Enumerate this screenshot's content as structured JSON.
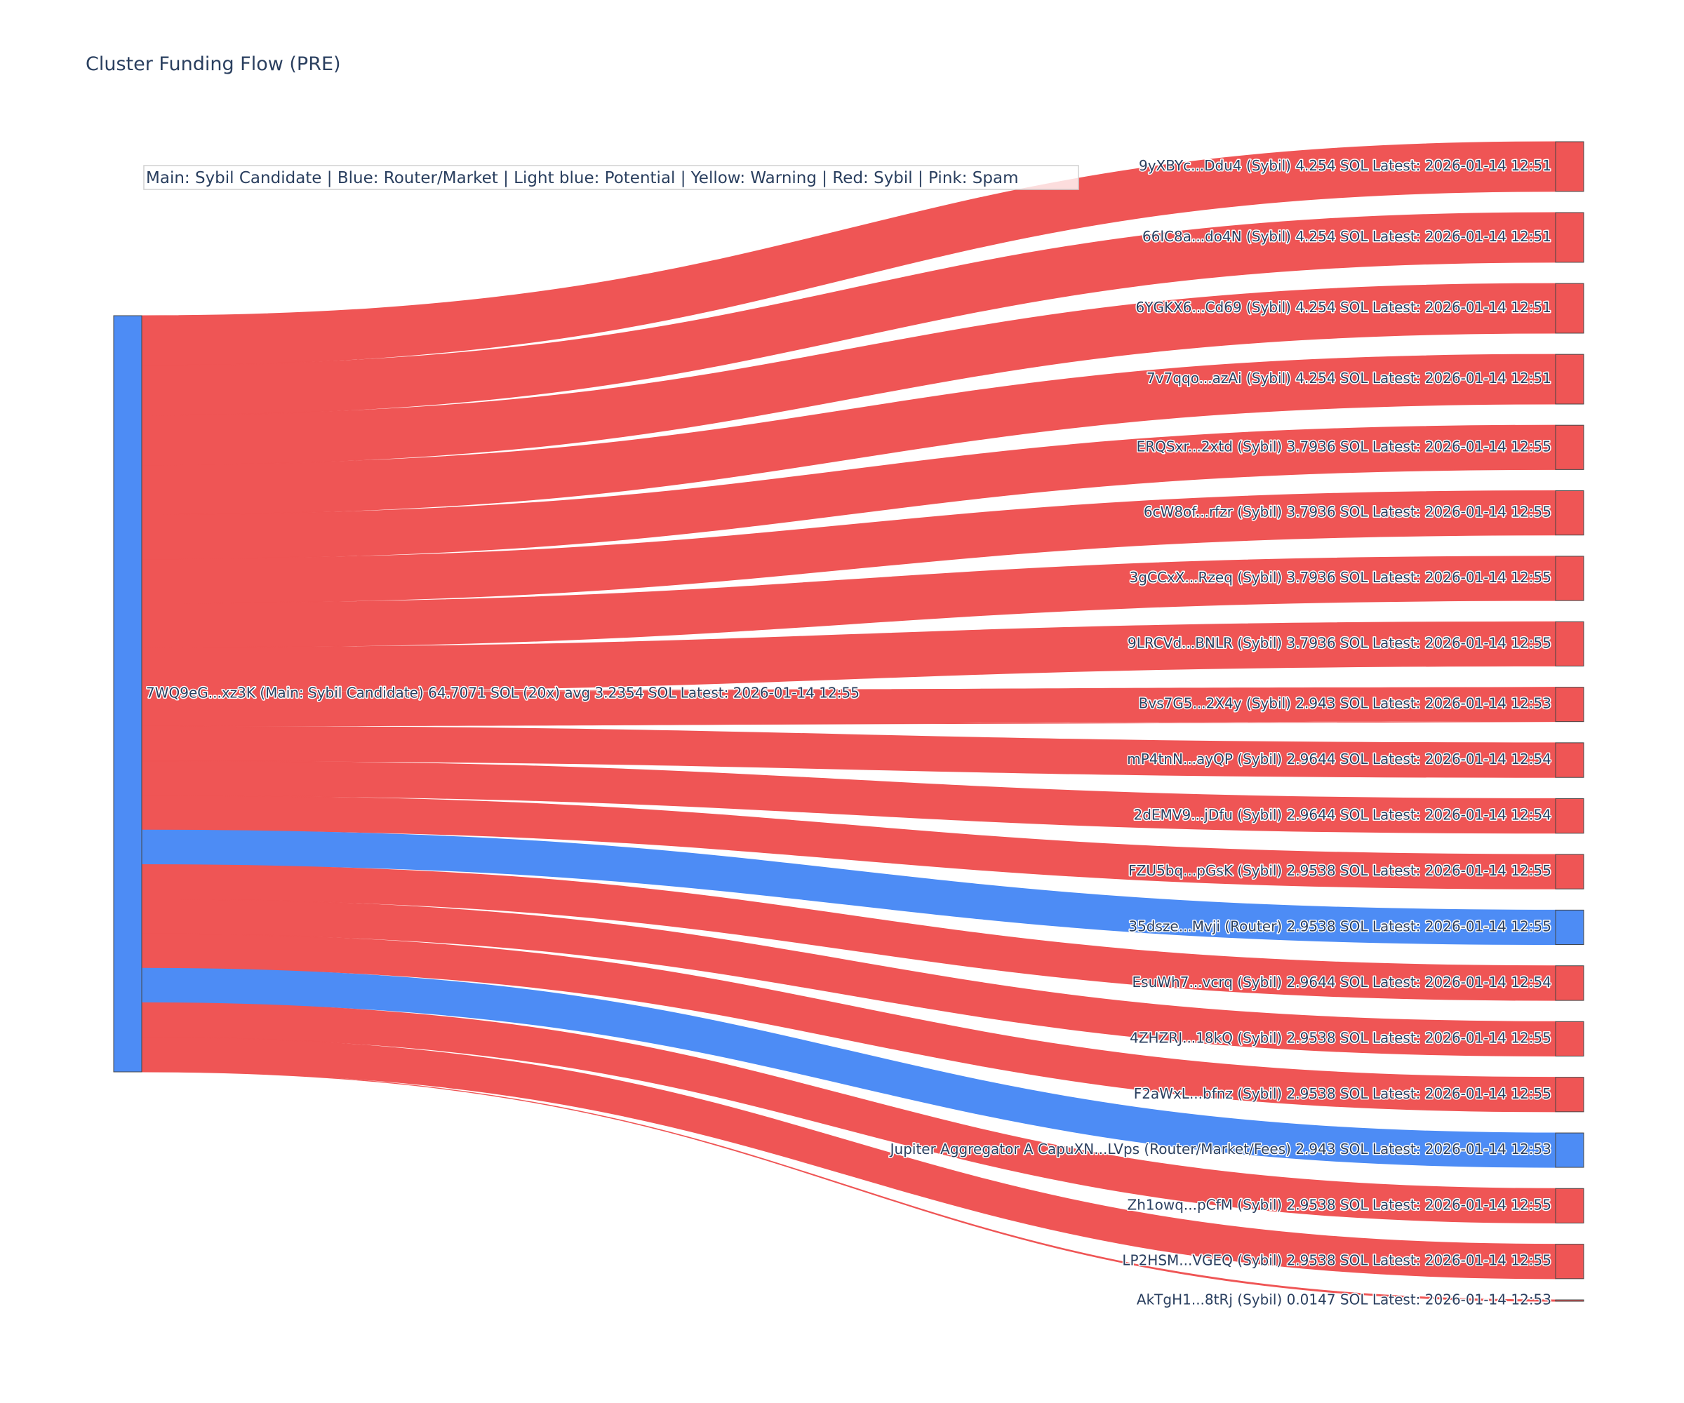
{
  "title": "Cluster Funding Flow (PRE)",
  "legend": "Main: Sybil Candidate  |  Blue: Router/Market | Light blue: Potential | Yellow: Warning | Red: Sybil | Pink: Spam",
  "colors": {
    "sybil": "#ef5555",
    "router": "#4d8cf5",
    "main": "#4d8cf5",
    "node_border": "#444444"
  },
  "chart_data": {
    "type": "sankey",
    "unit": "SOL",
    "source": {
      "label": "7WQ9eG...xz3K (Main: Sybil Candidate) 64.7071 SOL (20x) avg 3.2354 SOL Latest: 2026-01-14 12:55",
      "role": "main",
      "total": 64.7071
    },
    "targets": [
      {
        "label": "9yXBYc...Ddu4 (Sybil) 4.254 SOL Latest: 2026-01-14 12:51",
        "value": 4.254,
        "role": "sybil"
      },
      {
        "label": "66lC8a...do4N (Sybil) 4.254 SOL Latest: 2026-01-14 12:51",
        "value": 4.254,
        "role": "sybil"
      },
      {
        "label": "6YGKX6...Cd69 (Sybil) 4.254 SOL Latest: 2026-01-14 12:51",
        "value": 4.254,
        "role": "sybil"
      },
      {
        "label": "7v7qqo...azAi (Sybil) 4.254 SOL Latest: 2026-01-14 12:51",
        "value": 4.254,
        "role": "sybil"
      },
      {
        "label": "ERQSxr...2xtd (Sybil) 3.7936 SOL Latest: 2026-01-14 12:55",
        "value": 3.7936,
        "role": "sybil"
      },
      {
        "label": "6cW8of...rfzr (Sybil) 3.7936 SOL Latest: 2026-01-14 12:55",
        "value": 3.7936,
        "role": "sybil"
      },
      {
        "label": "3gCCxX...Rzeq (Sybil) 3.7936 SOL Latest: 2026-01-14 12:55",
        "value": 3.7936,
        "role": "sybil"
      },
      {
        "label": "9LRCVd...BNLR (Sybil) 3.7936 SOL Latest: 2026-01-14 12:55",
        "value": 3.7936,
        "role": "sybil"
      },
      {
        "label": "Bvs7G5...2X4y (Sybil) 2.943 SOL Latest: 2026-01-14 12:53",
        "value": 2.943,
        "role": "sybil"
      },
      {
        "label": "mP4tnN...ayQP (Sybil) 2.9644 SOL Latest: 2026-01-14 12:54",
        "value": 2.9644,
        "role": "sybil"
      },
      {
        "label": "2dEMV9...jDfu (Sybil) 2.9644 SOL Latest: 2026-01-14 12:54",
        "value": 2.9644,
        "role": "sybil"
      },
      {
        "label": "FZU5bq...pGsK (Sybil) 2.9538 SOL Latest: 2026-01-14 12:55",
        "value": 2.9538,
        "role": "sybil"
      },
      {
        "label": "35dsze...Mvji (Router) 2.9538 SOL Latest: 2026-01-14 12:55",
        "value": 2.9538,
        "role": "router"
      },
      {
        "label": "EsuWh7...vcrq (Sybil) 2.9644 SOL Latest: 2026-01-14 12:54",
        "value": 2.9644,
        "role": "sybil"
      },
      {
        "label": "4ZHZRJ...18kQ (Sybil) 2.9538 SOL Latest: 2026-01-14 12:55",
        "value": 2.9538,
        "role": "sybil"
      },
      {
        "label": "F2aWxL...bfnz (Sybil) 2.9538 SOL Latest: 2026-01-14 12:55",
        "value": 2.9538,
        "role": "sybil"
      },
      {
        "label": "Jupiter Aggregator A CapuXN...LVps (Router/Market/Fees) 2.943 SOL Latest: 2026-01-14 12:53",
        "value": 2.943,
        "role": "router"
      },
      {
        "label": "Zh1owq...pCfM (Sybil) 2.9538 SOL Latest: 2026-01-14 12:55",
        "value": 2.9538,
        "role": "sybil"
      },
      {
        "label": "LP2HSM...VGEQ (Sybil) 2.9538 SOL Latest: 2026-01-14 12:55",
        "value": 2.9538,
        "role": "sybil"
      },
      {
        "label": "AkTgH1...8tRj (Sybil) 0.0147 SOL Latest: 2026-01-14 12:53",
        "value": 0.0147,
        "role": "sybil"
      }
    ],
    "link_order": [
      0,
      1,
      2,
      3,
      4,
      5,
      6,
      7,
      8,
      9,
      10,
      11,
      12,
      13,
      14,
      15,
      16,
      17,
      18,
      19
    ]
  }
}
